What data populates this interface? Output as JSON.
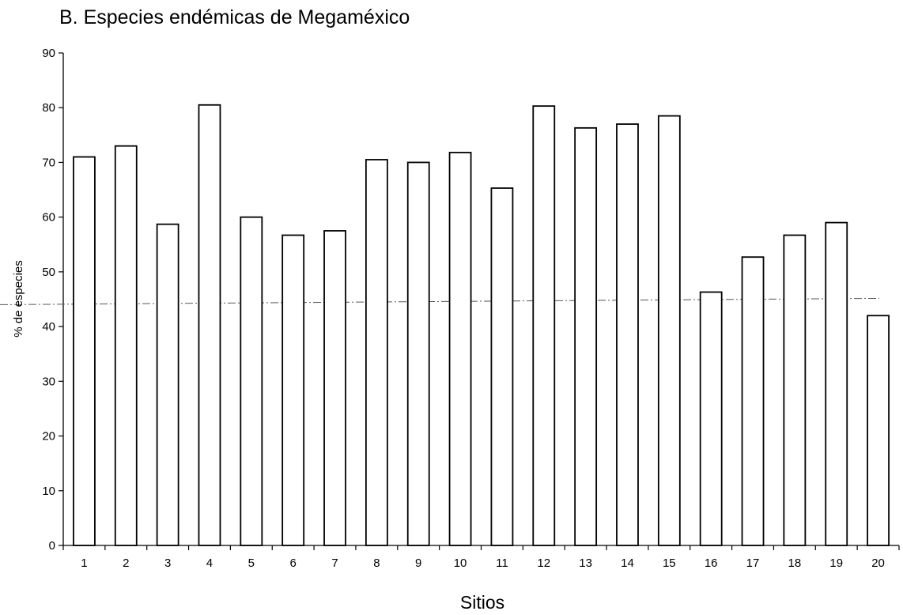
{
  "chart_data": {
    "type": "bar",
    "title": "B. Especies endémicas de  Megaméxico",
    "xlabel": "Sitios",
    "ylabel": "% de especies",
    "categories": [
      "1",
      "2",
      "3",
      "4",
      "5",
      "6",
      "7",
      "8",
      "9",
      "10",
      "11",
      "12",
      "13",
      "14",
      "15",
      "16",
      "17",
      "18",
      "19",
      "20"
    ],
    "values": [
      71,
      73,
      58.7,
      80.5,
      60,
      56.7,
      57.5,
      70.5,
      70,
      71.8,
      65.3,
      80.3,
      76.3,
      77,
      78.5,
      46.3,
      52.7,
      56.7,
      59,
      42
    ],
    "ylim": [
      0,
      90
    ],
    "yticks": [
      0,
      10,
      20,
      30,
      40,
      50,
      60,
      70,
      80,
      90
    ],
    "reference_line": 44,
    "grid": false,
    "legend": "none",
    "colors": {
      "bar_fill": "#ffffff",
      "bar_stroke": "#000000",
      "reference_line": "#555555"
    }
  }
}
